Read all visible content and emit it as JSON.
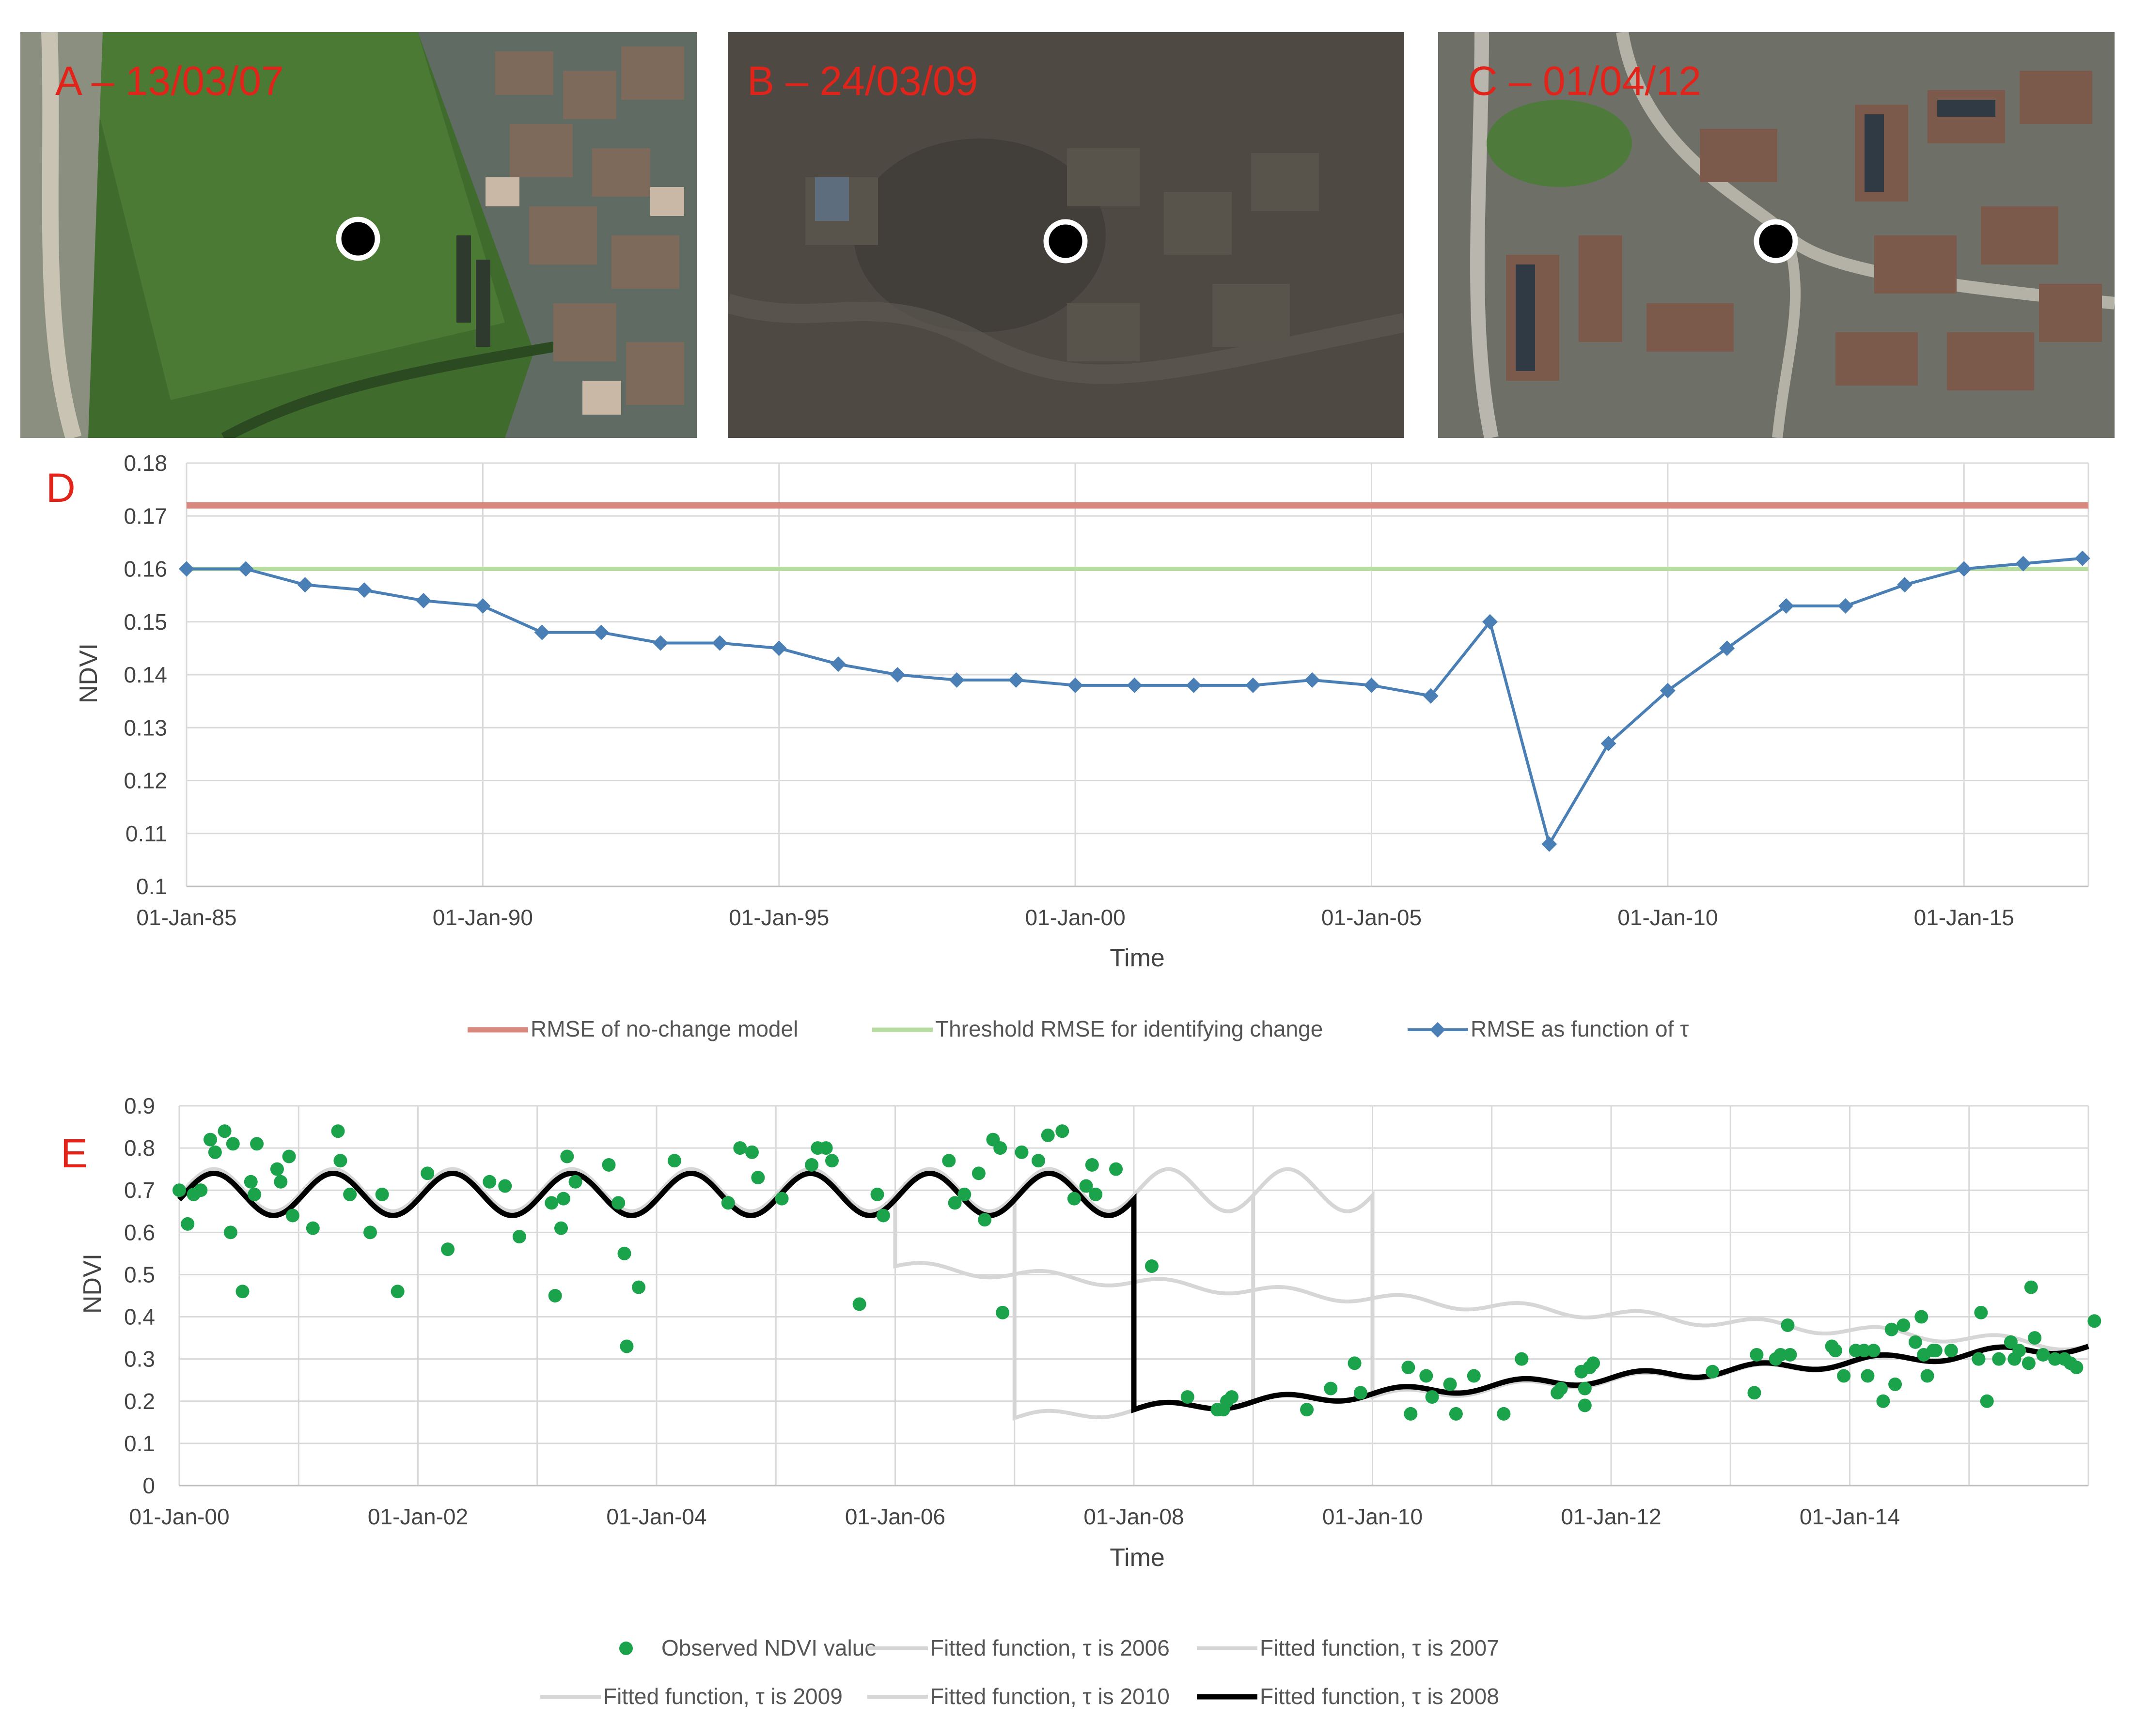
{
  "photos": [
    {
      "id": "A",
      "label": "A – 13/03/07",
      "label_color": "#e8231b"
    },
    {
      "id": "B",
      "label": "B – 24/03/09",
      "label_color": "#e8231b"
    },
    {
      "id": "C",
      "label": "C – 01/04/12",
      "label_color": "#e8231b"
    }
  ],
  "colors": {
    "no_change": "#d98880",
    "threshold": "#b6dca0",
    "rmse": "#4a7fb5",
    "observed": "#1aa34a",
    "fit_other": "#d6d6d6",
    "fit_best": "#000000",
    "panel_label": "#e2231a"
  },
  "chart_data": [
    {
      "type": "line",
      "panel_label": "D",
      "title": "",
      "xlabel": "Time",
      "ylabel": "NDVI",
      "ylim": [
        0.1,
        0.18
      ],
      "xlim": [
        1985,
        2017.1
      ],
      "yticks": [
        0.1,
        0.11,
        0.12,
        0.13,
        0.14,
        0.15,
        0.16,
        0.17,
        0.18
      ],
      "ytick_labels": [
        "0.1",
        "0.11",
        "0.12",
        "0.13",
        "0.14",
        "0.15",
        "0.16",
        "0.17",
        "0.18"
      ],
      "xticks": [
        1985,
        1990,
        1995,
        2000,
        2005,
        2010,
        2015
      ],
      "xtick_labels": [
        "01-Jan-85",
        "01-Jan-90",
        "01-Jan-95",
        "01-Jan-00",
        "01-Jan-05",
        "01-Jan-10",
        "01-Jan-15"
      ],
      "legend_position": "bottom",
      "series": [
        {
          "name": "RMSE of no-change model",
          "kind": "hline",
          "value": 0.172
        },
        {
          "name": "Threshold RMSE for identifying change",
          "kind": "hline",
          "value": 0.16
        },
        {
          "name": "RMSE as function of τ",
          "kind": "line-marker",
          "x": [
            1985,
            1986,
            1987,
            1988,
            1989,
            1990,
            1991,
            1992,
            1993,
            1994,
            1995,
            1996,
            1997,
            1998,
            1999,
            2000,
            2001,
            2002,
            2003,
            2004,
            2005,
            2006,
            2007,
            2008,
            2009,
            2010,
            2011,
            2012,
            2013,
            2014,
            2015,
            2016,
            2017
          ],
          "y": [
            0.16,
            0.16,
            0.157,
            0.156,
            0.154,
            0.153,
            0.148,
            0.148,
            0.146,
            0.146,
            0.145,
            0.142,
            0.14,
            0.139,
            0.139,
            0.138,
            0.138,
            0.138,
            0.138,
            0.139,
            0.138,
            0.136,
            0.15,
            0.108,
            0.127,
            0.137,
            0.145,
            0.153,
            0.153,
            0.157,
            0.16,
            0.161,
            0.162
          ]
        }
      ]
    },
    {
      "type": "scatter",
      "panel_label": "E",
      "title": "",
      "xlabel": "Time",
      "ylabel": "NDVI",
      "ylim": [
        0,
        0.9
      ],
      "xlim": [
        2000,
        2016.0
      ],
      "yticks": [
        0,
        0.1,
        0.2,
        0.3,
        0.4,
        0.5,
        0.6,
        0.7,
        0.8,
        0.9
      ],
      "ytick_labels": [
        "0",
        "0.1",
        "0.2",
        "0.3",
        "0.4",
        "0.5",
        "0.6",
        "0.7",
        "0.8",
        "0.9"
      ],
      "xticks": [
        2000,
        2002,
        2004,
        2006,
        2008,
        2010,
        2012,
        2014
      ],
      "xtick_labels": [
        "01-Jan-00",
        "01-Jan-02",
        "01-Jan-04",
        "01-Jan-06",
        "01-Jan-08",
        "01-Jan-10",
        "01-Jan-12",
        "01-Jan-14"
      ],
      "legend_position": "bottom",
      "observed": {
        "name": "Observed NDVI value",
        "points": [
          [
            2000.0,
            0.7
          ],
          [
            2000.07,
            0.62
          ],
          [
            2000.12,
            0.69
          ],
          [
            2000.18,
            0.7
          ],
          [
            2000.26,
            0.82
          ],
          [
            2000.3,
            0.79
          ],
          [
            2000.38,
            0.84
          ],
          [
            2000.43,
            0.6
          ],
          [
            2000.45,
            0.81
          ],
          [
            2000.53,
            0.46
          ],
          [
            2000.6,
            0.72
          ],
          [
            2000.63,
            0.69
          ],
          [
            2000.65,
            0.81
          ],
          [
            2000.82,
            0.75
          ],
          [
            2000.85,
            0.72
          ],
          [
            2000.92,
            0.78
          ],
          [
            2000.95,
            0.64
          ],
          [
            2001.12,
            0.61
          ],
          [
            2001.33,
            0.84
          ],
          [
            2001.35,
            0.77
          ],
          [
            2001.43,
            0.69
          ],
          [
            2001.6,
            0.6
          ],
          [
            2001.7,
            0.69
          ],
          [
            2001.83,
            0.46
          ],
          [
            2002.08,
            0.74
          ],
          [
            2002.25,
            0.56
          ],
          [
            2002.6,
            0.72
          ],
          [
            2002.73,
            0.71
          ],
          [
            2002.85,
            0.59
          ],
          [
            2003.12,
            0.67
          ],
          [
            2003.15,
            0.45
          ],
          [
            2003.2,
            0.61
          ],
          [
            2003.22,
            0.68
          ],
          [
            2003.25,
            0.78
          ],
          [
            2003.32,
            0.72
          ],
          [
            2003.6,
            0.76
          ],
          [
            2003.68,
            0.67
          ],
          [
            2003.73,
            0.55
          ],
          [
            2003.75,
            0.33
          ],
          [
            2003.85,
            0.47
          ],
          [
            2004.15,
            0.77
          ],
          [
            2004.6,
            0.67
          ],
          [
            2004.7,
            0.8
          ],
          [
            2004.8,
            0.79
          ],
          [
            2004.85,
            0.73
          ],
          [
            2005.05,
            0.68
          ],
          [
            2005.3,
            0.76
          ],
          [
            2005.35,
            0.8
          ],
          [
            2005.42,
            0.8
          ],
          [
            2005.47,
            0.77
          ],
          [
            2005.7,
            0.43
          ],
          [
            2005.85,
            0.69
          ],
          [
            2005.9,
            0.64
          ],
          [
            2006.45,
            0.77
          ],
          [
            2006.5,
            0.67
          ],
          [
            2006.58,
            0.69
          ],
          [
            2006.7,
            0.74
          ],
          [
            2006.75,
            0.63
          ],
          [
            2006.82,
            0.82
          ],
          [
            2006.88,
            0.8
          ],
          [
            2006.9,
            0.41
          ],
          [
            2007.06,
            0.79
          ],
          [
            2007.2,
            0.77
          ],
          [
            2007.28,
            0.83
          ],
          [
            2007.4,
            0.84
          ],
          [
            2007.5,
            0.68
          ],
          [
            2007.6,
            0.71
          ],
          [
            2007.65,
            0.76
          ],
          [
            2007.68,
            0.69
          ],
          [
            2007.85,
            0.75
          ],
          [
            2008.15,
            0.52
          ],
          [
            2008.45,
            0.21
          ],
          [
            2008.7,
            0.18
          ],
          [
            2008.75,
            0.18
          ],
          [
            2008.78,
            0.2
          ],
          [
            2008.82,
            0.21
          ],
          [
            2009.45,
            0.18
          ],
          [
            2009.65,
            0.23
          ],
          [
            2009.85,
            0.29
          ],
          [
            2009.9,
            0.22
          ],
          [
            2010.3,
            0.28
          ],
          [
            2010.32,
            0.17
          ],
          [
            2010.45,
            0.26
          ],
          [
            2010.5,
            0.21
          ],
          [
            2010.65,
            0.24
          ],
          [
            2010.7,
            0.17
          ],
          [
            2010.85,
            0.26
          ],
          [
            2011.1,
            0.17
          ],
          [
            2011.25,
            0.3
          ],
          [
            2011.55,
            0.22
          ],
          [
            2011.58,
            0.23
          ],
          [
            2011.75,
            0.27
          ],
          [
            2011.78,
            0.23
          ],
          [
            2011.78,
            0.19
          ],
          [
            2011.82,
            0.28
          ],
          [
            2011.85,
            0.29
          ],
          [
            2012.85,
            0.27
          ],
          [
            2013.2,
            0.22
          ],
          [
            2013.22,
            0.31
          ],
          [
            2013.38,
            0.3
          ],
          [
            2013.42,
            0.31
          ],
          [
            2013.48,
            0.38
          ],
          [
            2013.5,
            0.31
          ],
          [
            2013.85,
            0.33
          ],
          [
            2013.88,
            0.32
          ],
          [
            2013.95,
            0.26
          ],
          [
            2014.05,
            0.32
          ],
          [
            2014.12,
            0.32
          ],
          [
            2014.15,
            0.26
          ],
          [
            2014.2,
            0.32
          ],
          [
            2014.28,
            0.2
          ],
          [
            2014.35,
            0.37
          ],
          [
            2014.38,
            0.24
          ],
          [
            2014.45,
            0.38
          ],
          [
            2014.55,
            0.34
          ],
          [
            2014.6,
            0.4
          ],
          [
            2014.62,
            0.31
          ],
          [
            2014.65,
            0.26
          ],
          [
            2014.7,
            0.32
          ],
          [
            2014.72,
            0.32
          ],
          [
            2014.85,
            0.32
          ],
          [
            2015.08,
            0.3
          ],
          [
            2015.1,
            0.41
          ],
          [
            2015.15,
            0.2
          ],
          [
            2015.25,
            0.3
          ],
          [
            2015.35,
            0.34
          ],
          [
            2015.38,
            0.3
          ],
          [
            2015.42,
            0.32
          ],
          [
            2015.5,
            0.29
          ],
          [
            2015.52,
            0.47
          ],
          [
            2015.55,
            0.35
          ],
          [
            2015.62,
            0.31
          ],
          [
            2015.72,
            0.3
          ],
          [
            2015.8,
            0.3
          ],
          [
            2015.85,
            0.29
          ],
          [
            2015.9,
            0.28
          ],
          [
            2016.05,
            0.39
          ]
        ]
      },
      "fits": [
        {
          "name": "Fitted function, τ is 2006",
          "tau": 2006,
          "pre_mean": 0.69,
          "pre_amp": 0.05,
          "post_start": 0.52,
          "post_end": 0.33,
          "best": false
        },
        {
          "name": "Fitted function, τ is 2007",
          "tau": 2007,
          "pre_mean": 0.69,
          "pre_amp": 0.05,
          "post_start": 0.16,
          "post_end": 0.33,
          "best": false
        },
        {
          "name": "Fitted function, τ is 2009",
          "tau": 2009,
          "pre_mean": 0.7,
          "pre_amp": 0.05,
          "post_start": 0.2,
          "post_end": 0.33,
          "best": false
        },
        {
          "name": "Fitted function, τ is 2010",
          "tau": 2010,
          "pre_mean": 0.7,
          "pre_amp": 0.05,
          "post_start": 0.21,
          "post_end": 0.33,
          "best": false
        },
        {
          "name": "Fitted function, τ is 2008",
          "tau": 2008,
          "pre_mean": 0.69,
          "pre_amp": 0.05,
          "post_start": 0.18,
          "post_end": 0.33,
          "best": true
        }
      ]
    }
  ]
}
